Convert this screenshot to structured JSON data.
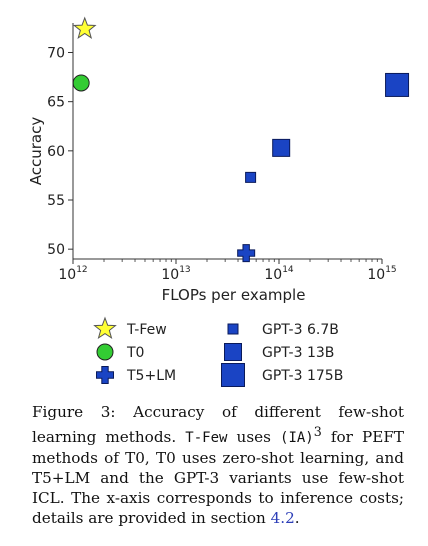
{
  "chart_data": {
    "type": "scatter",
    "xlabel": "FLOPs per example",
    "ylabel": "Accuracy",
    "x_scale": "log",
    "xlim": [
      1000000000000.0,
      1000000000000000.0
    ],
    "ylim": [
      49,
      73
    ],
    "y_ticks": [
      50,
      55,
      60,
      65,
      70
    ],
    "x_ticks": [
      1000000000000.0,
      10000000000000.0,
      100000000000000.0,
      1000000000000000.0
    ],
    "x_tick_labels": [
      {
        "base": "10",
        "exp": "12"
      },
      {
        "base": "10",
        "exp": "13"
      },
      {
        "base": "10",
        "exp": "14"
      },
      {
        "base": "10",
        "exp": "15"
      }
    ],
    "grid": false,
    "legend_position": "bottom",
    "points": [
      {
        "name": "T-Few",
        "x": 1300000000000.0,
        "y": 72.4,
        "marker": "star",
        "color": "#ffff33",
        "edge": "#555555"
      },
      {
        "name": "T0",
        "x": 1200000000000.0,
        "y": 66.9,
        "marker": "circle",
        "color": "#33cc33",
        "edge": "#222222"
      },
      {
        "name": "T5+LM",
        "x": 48000000000000.0,
        "y": 49.6,
        "marker": "plus",
        "color": "#1a44c4",
        "edge": "#0a1a5a"
      },
      {
        "name": "GPT-3 6.7B",
        "x": 53000000000000.0,
        "y": 57.3,
        "marker": "square",
        "size": 10,
        "color": "#1a44c4",
        "edge": "#0a1a5a"
      },
      {
        "name": "GPT-3 13B",
        "x": 105000000000000.0,
        "y": 60.3,
        "marker": "square",
        "size": 17,
        "color": "#1a44c4",
        "edge": "#0a1a5a"
      },
      {
        "name": "GPT-3 175B",
        "x": 1400000000000000.0,
        "y": 66.7,
        "marker": "square",
        "size": 23,
        "color": "#1a44c4",
        "edge": "#0a1a5a"
      }
    ]
  },
  "caption": {
    "lead": "Figure 3: Accuracy of different few-shot learning methods. ",
    "tfew_code": "T-Few",
    "uses": " uses ",
    "ia3_code": "(IA)",
    "ia3_sup": "3",
    "rest": " for PEFT methods of T0, T0 uses zero-shot learning, and T5+LM and the GPT-3 variants use few-shot ICL. The x-axis corresponds to inference costs; details are provided in section ",
    "section_link": "4.2",
    "end": "."
  }
}
